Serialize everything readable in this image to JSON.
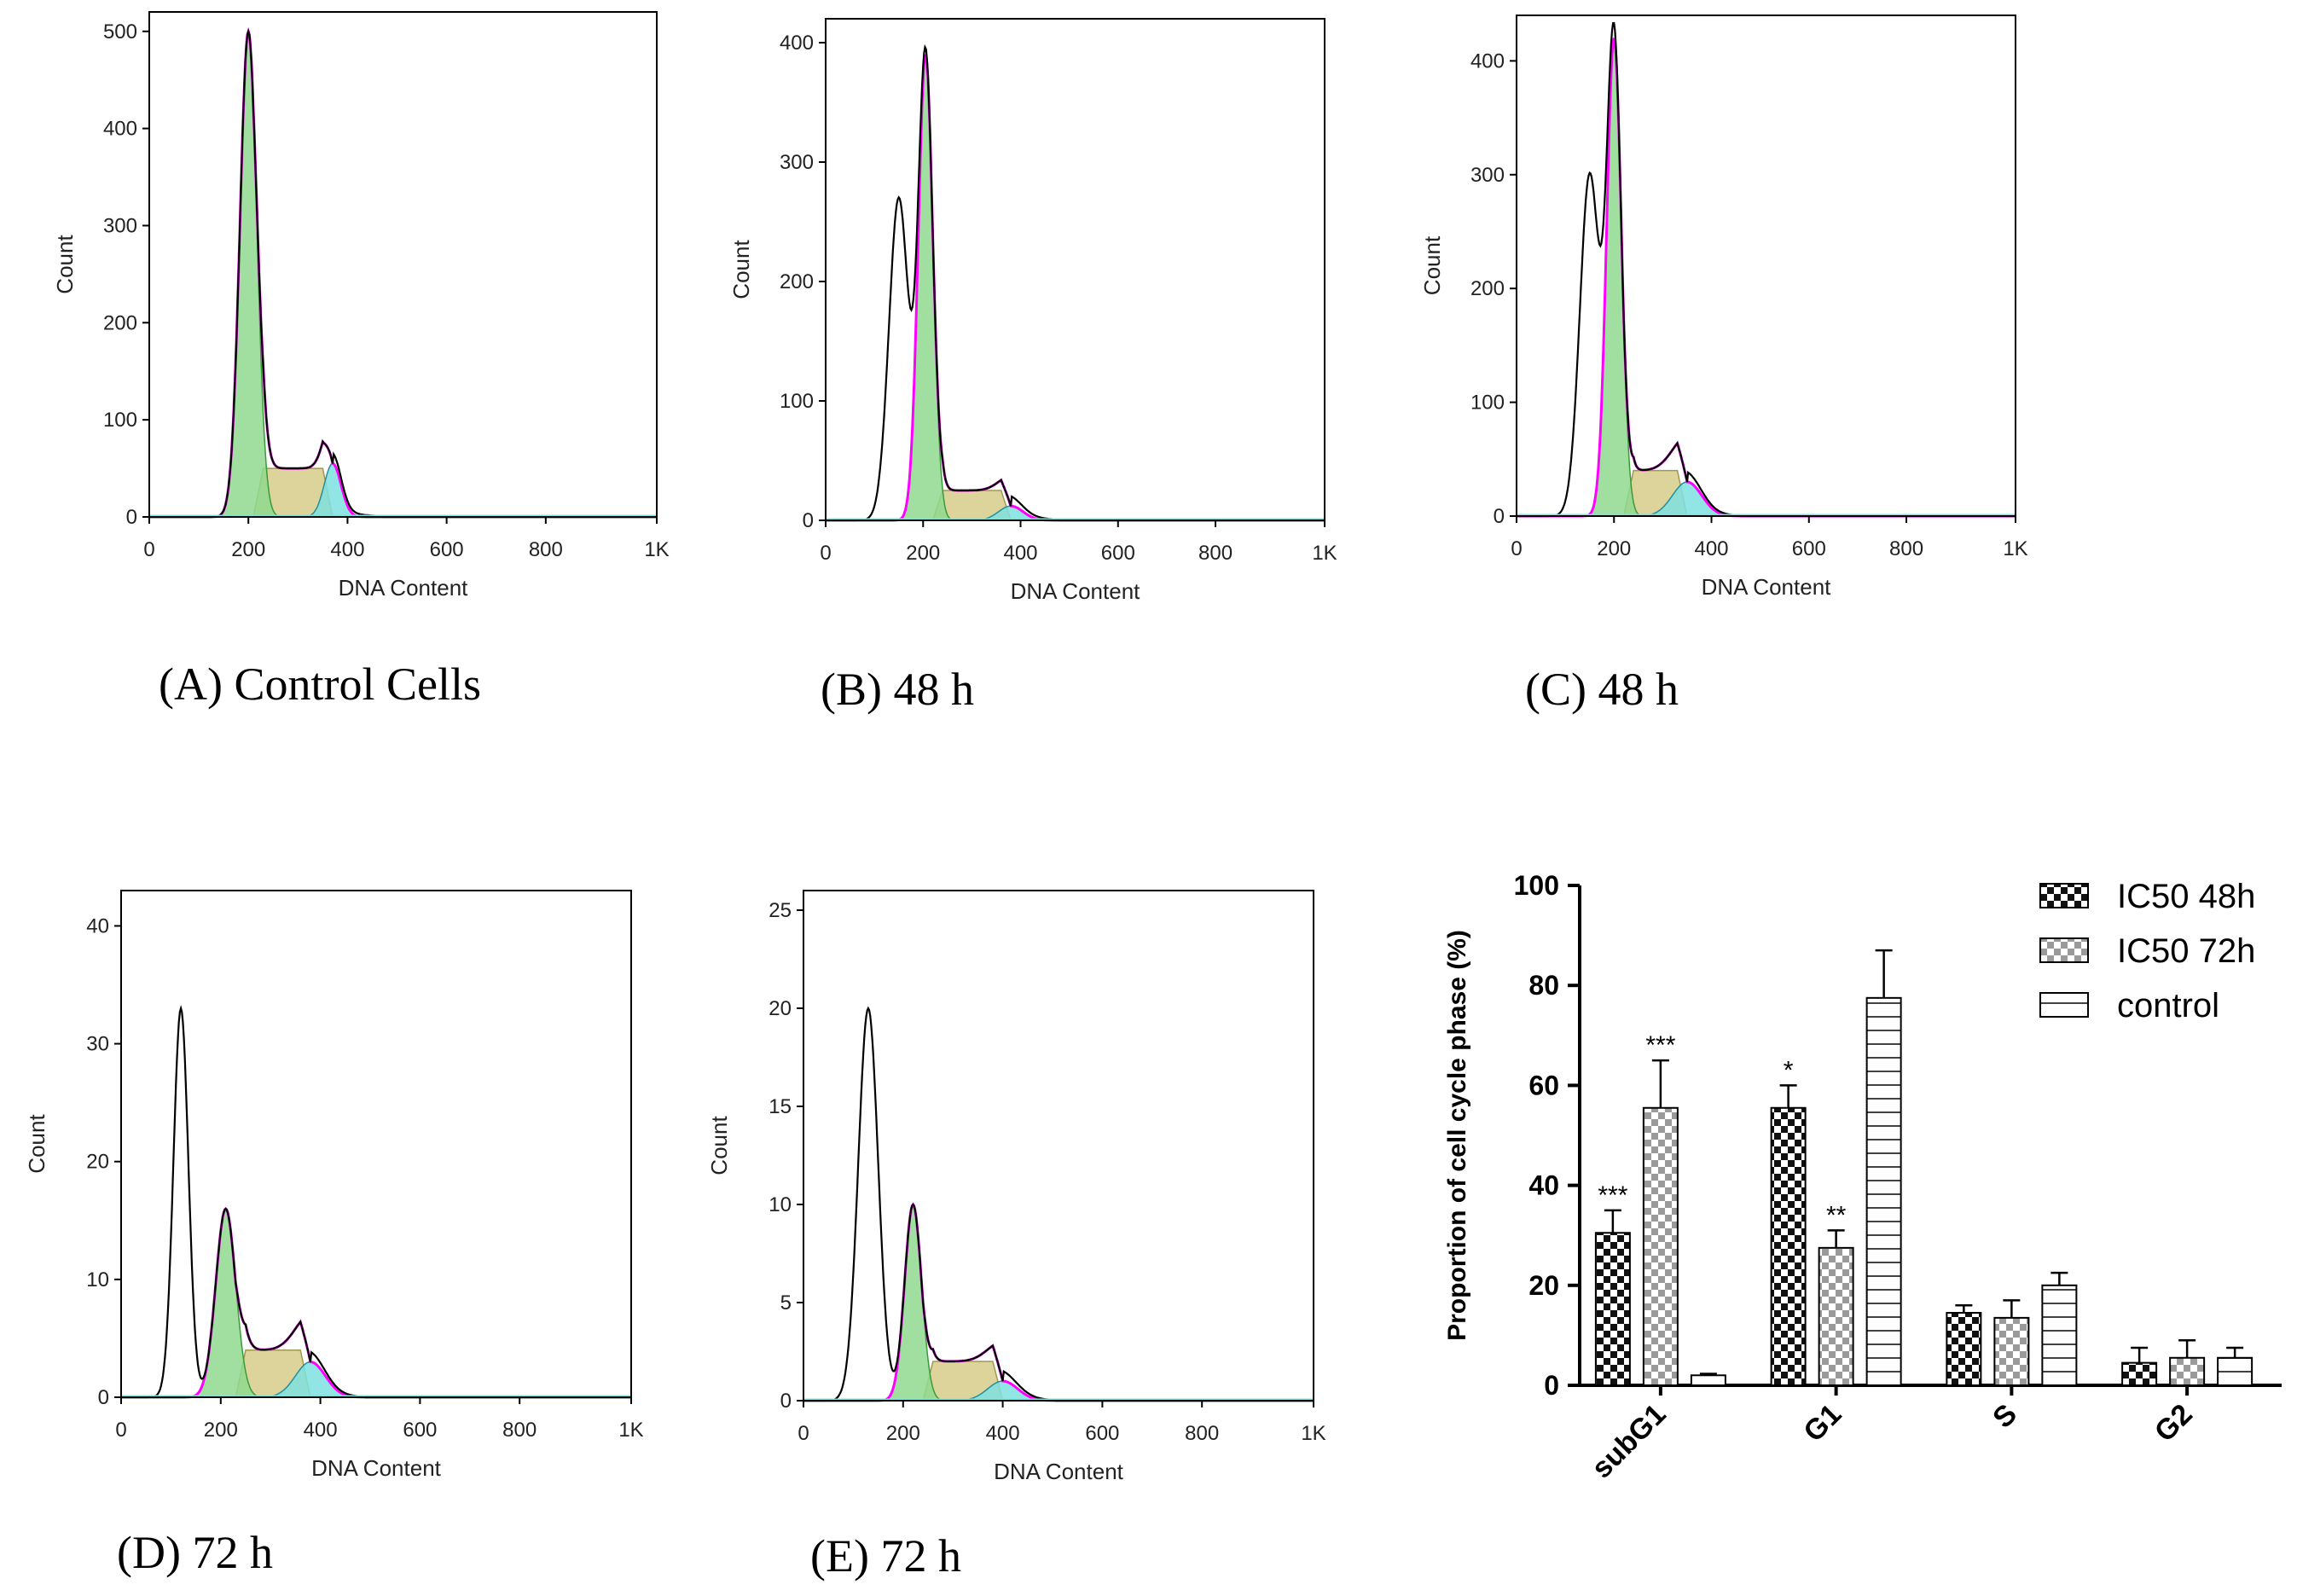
{
  "colors": {
    "g1": "#8fd98f",
    "s": "#d6cc8a",
    "g2": "#7fe0e0",
    "total": "#000000",
    "fit": "#ff00ff",
    "axis": "#000000"
  },
  "chart_data": [
    {
      "id": "A",
      "type": "histogram",
      "caption": "(A) Control Cells",
      "xlabel": "DNA Content",
      "ylabel": "Count",
      "xlim": [
        0,
        1024
      ],
      "ylim": [
        0,
        520
      ],
      "xticks": [
        "0",
        "200",
        "400",
        "600",
        "800",
        "1K"
      ],
      "yticks": [
        0,
        100,
        200,
        300,
        400,
        500
      ],
      "peaks": {
        "subg1": [
          160,
          0,
          15
        ],
        "g1": [
          200,
          500,
          17
        ],
        "g2": [
          370,
          55,
          17
        ]
      },
      "s_phase": [
        210,
        370,
        50
      ]
    },
    {
      "id": "B",
      "type": "histogram",
      "caption": "(B) 48 h",
      "xlabel": "DNA Content",
      "ylabel": "Count",
      "xlim": [
        0,
        1024
      ],
      "ylim": [
        0,
        420
      ],
      "xticks": [
        "0",
        "200",
        "400",
        "600",
        "800",
        "1K"
      ],
      "yticks": [
        0,
        100,
        200,
        300,
        400
      ],
      "peaks": {
        "subg1": [
          150,
          270,
          20
        ],
        "g1": [
          205,
          390,
          15
        ],
        "g2": [
          380,
          12,
          25
        ]
      },
      "s_phase": [
        220,
        380,
        25
      ]
    },
    {
      "id": "C",
      "type": "histogram",
      "caption": "(C) 48 h",
      "xlabel": "DNA Content",
      "ylabel": "Count",
      "xlim": [
        0,
        1024
      ],
      "ylim": [
        0,
        440
      ],
      "xticks": [
        "0",
        "200",
        "400",
        "600",
        "800",
        "1K"
      ],
      "yticks": [
        0,
        100,
        200,
        300,
        400
      ],
      "peaks": {
        "subg1": [
          150,
          300,
          20
        ],
        "g1": [
          200,
          420,
          15
        ],
        "g2": [
          350,
          30,
          30
        ]
      },
      "s_phase": [
        220,
        350,
        40
      ]
    },
    {
      "id": "D",
      "type": "histogram",
      "caption": "(D) 72 h",
      "xlabel": "DNA Content",
      "ylabel": "Count",
      "xlim": [
        0,
        1024
      ],
      "ylim": [
        0,
        43
      ],
      "xticks": [
        "0",
        "200",
        "400",
        "600",
        "800",
        "1K"
      ],
      "yticks": [
        0,
        10,
        20,
        30,
        40
      ],
      "peaks": {
        "subg1": [
          120,
          33,
          15
        ],
        "g1": [
          210,
          16,
          20
        ],
        "g2": [
          380,
          3,
          30
        ]
      },
      "s_phase": [
        230,
        380,
        4
      ]
    },
    {
      "id": "E",
      "type": "histogram",
      "caption": "(E) 72 h",
      "xlabel": "DNA Content",
      "ylabel": "Count",
      "xlim": [
        0,
        1024
      ],
      "ylim": [
        0,
        26
      ],
      "xticks": [
        "0",
        "200",
        "400",
        "600",
        "800",
        "1K"
      ],
      "yticks": [
        0,
        5,
        10,
        15,
        20,
        25
      ],
      "peaks": {
        "subg1": [
          130,
          20,
          20
        ],
        "g1": [
          220,
          10,
          17
        ],
        "g2": [
          400,
          1,
          30
        ]
      },
      "s_phase": [
        240,
        400,
        2
      ]
    },
    {
      "id": "F",
      "type": "bar",
      "ylabel": "Proportion of cell cycle phase (%)",
      "ylim": [
        0,
        100
      ],
      "yticks": [
        0,
        20,
        40,
        60,
        80,
        100
      ],
      "categories": [
        "subG1",
        "G1",
        "S",
        "G2"
      ],
      "series": [
        {
          "name": "IC50 48h",
          "pattern": "dense-check",
          "values": [
            30.5,
            55.5,
            14.5,
            4.5
          ],
          "errors": [
            4.5,
            4.5,
            1.5,
            3
          ],
          "stars": [
            "***",
            "*",
            "",
            ""
          ]
        },
        {
          "name": "IC50 72h",
          "pattern": "light-check",
          "values": [
            55.5,
            27.5,
            13.5,
            5.5
          ],
          "errors": [
            9.5,
            3.5,
            3.5,
            3.5
          ],
          "stars": [
            "***",
            "**",
            "",
            ""
          ]
        },
        {
          "name": "control",
          "pattern": "h-lines",
          "values": [
            2,
            77.5,
            20,
            5.5
          ],
          "errors": [
            0.3,
            9.5,
            2.5,
            2
          ],
          "stars": [
            "",
            "",
            "",
            ""
          ]
        }
      ]
    }
  ]
}
